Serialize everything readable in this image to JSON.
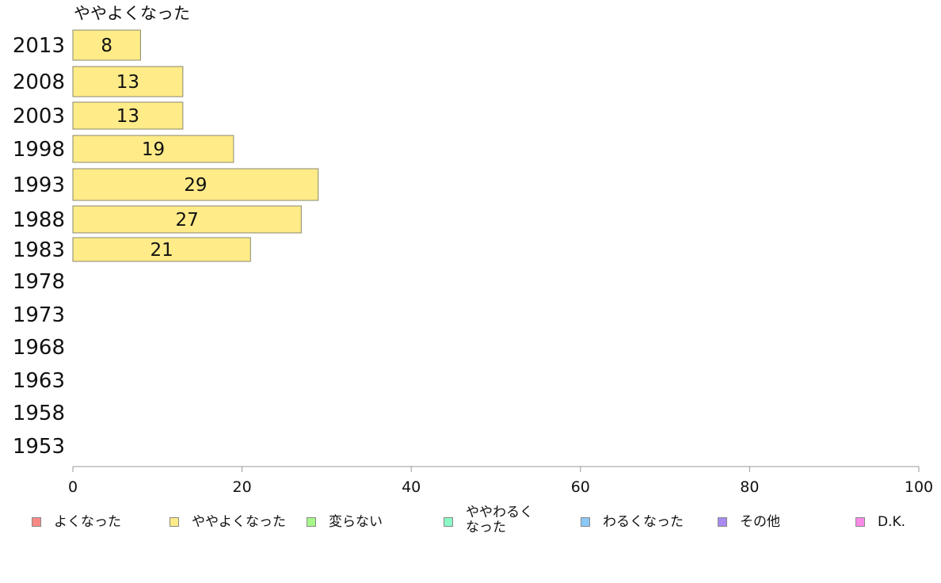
{
  "chart_data": {
    "type": "bar",
    "orientation": "horizontal",
    "title": "ややよくなった",
    "categories": [
      "2013",
      "2008",
      "2003",
      "1998",
      "1993",
      "1988",
      "1983",
      "1978",
      "1973",
      "1968",
      "1963",
      "1958",
      "1953"
    ],
    "values": [
      8,
      13,
      13,
      19,
      29,
      27,
      21,
      null,
      null,
      null,
      null,
      null,
      null
    ],
    "xlim": [
      0,
      100
    ],
    "xticks": [
      0,
      20,
      40,
      60,
      80,
      100
    ],
    "bar_color": "#FFEB88",
    "bar_border": "#8a8a70",
    "legend": {
      "placement": "bottom",
      "items": [
        {
          "label": "よくなった",
          "color": "#F88A86"
        },
        {
          "label": "ややよくなった",
          "color": "#FFEB88"
        },
        {
          "label": "変らない",
          "color": "#A6F88A"
        },
        {
          "label": "ややわるく\nなった",
          "color": "#8AF8C8"
        },
        {
          "label": "わるくなった",
          "color": "#8AC8F8"
        },
        {
          "label": "その他",
          "color": "#A88AF0"
        },
        {
          "label": "D.K.",
          "color": "#F88AE8"
        }
      ]
    }
  }
}
